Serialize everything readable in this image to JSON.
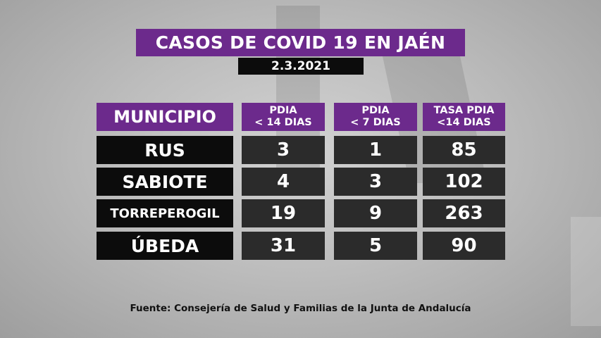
{
  "title": "CASOS DE COVID 19 EN JAÉN",
  "date": "2.3.2021",
  "table": {
    "headers": {
      "municipio": "MUNICIPIO",
      "pdia14": [
        "PDIA",
        "< 14 DIAS"
      ],
      "pdia7": [
        "PDIA",
        "< 7 DIAS"
      ],
      "tasa": [
        "TASA PDIA",
        "<14 DIAS"
      ]
    },
    "rows": [
      {
        "municipio": "RUS",
        "pdia14": "3",
        "pdia7": "1",
        "tasa": "85"
      },
      {
        "municipio": "SABIOTE",
        "pdia14": "4",
        "pdia7": "3",
        "tasa": "102"
      },
      {
        "municipio": "TORREPEROGIL",
        "pdia14": "19",
        "pdia7": "9",
        "tasa": "263"
      },
      {
        "municipio": "ÚBEDA",
        "pdia14": "31",
        "pdia7": "5",
        "tasa": "90"
      }
    ]
  },
  "source": "Fuente: Consejería de Salud y Familias de la Junta de Andalucía",
  "colors": {
    "purple": "#6c2a8c",
    "black": "#0c0c0c",
    "dark_gray": "#2b2b2b",
    "background": "#bdbdbd"
  }
}
